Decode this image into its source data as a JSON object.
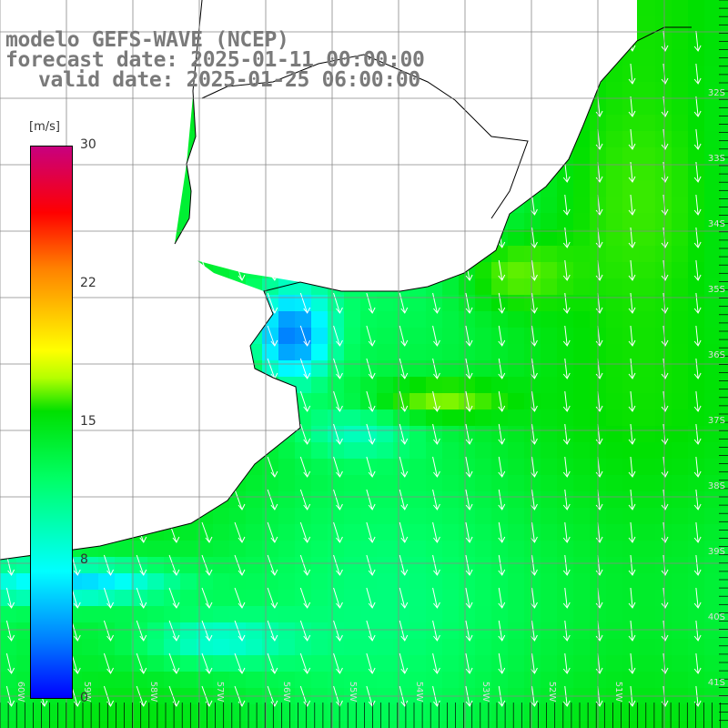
{
  "title": {
    "line1": "modelo GEFS-WAVE (NCEP)",
    "line2": "forecast date: 2025-01-11 00:00:00",
    "line3": "valid date: 2025-01-25 06:00:00"
  },
  "colorbar": {
    "units": "[m/s]",
    "ticks": [
      "30",
      "22",
      "15",
      "8",
      "0"
    ],
    "colors": [
      "#0000ff",
      "#0078ff",
      "#00ffff",
      "#00ff64",
      "#00e000",
      "#b4ff00",
      "#ffff00",
      "#ff8000",
      "#ff0000",
      "#c8007f"
    ]
  },
  "map": {
    "land_color": "#ffffff",
    "coastline_color": "#000000",
    "grid_color": "#888888",
    "wind_arrow_color": "#ffffff",
    "lat_labels": [
      "32S",
      "33S",
      "34S",
      "35S",
      "36S",
      "37S",
      "38S",
      "39S",
      "40S",
      "41S"
    ],
    "lon_labels": [
      "60W",
      "59W",
      "58W",
      "57W",
      "56W",
      "55W",
      "54W",
      "53W",
      "52W",
      "51W"
    ]
  }
}
